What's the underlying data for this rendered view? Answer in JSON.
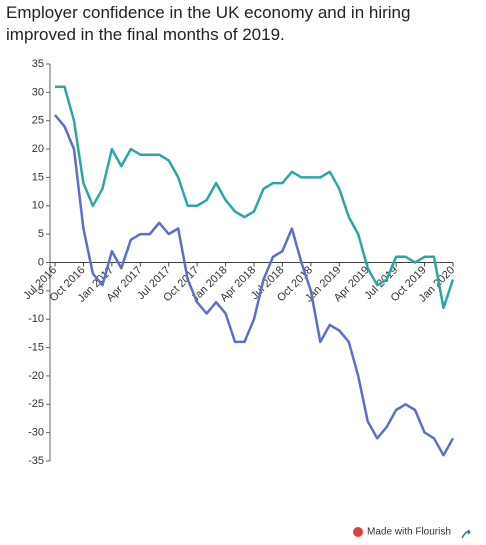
{
  "chart_data": {
    "type": "line",
    "title": "Employer confidence in the UK economy and in hiring improved in the final months of 2019.",
    "footer": "Made with Flourish",
    "categories": [
      "Jul 2016",
      null,
      null,
      "Oct 2016",
      null,
      null,
      "Jan 2017",
      null,
      null,
      "Apr 2017",
      null,
      null,
      "Jul 2017",
      null,
      null,
      "Oct 2017",
      null,
      null,
      "Jan 2018",
      null,
      null,
      "Apr 2018",
      null,
      null,
      "Jul 2018",
      null,
      null,
      "Oct 2018",
      null,
      null,
      "Jan 2019",
      null,
      null,
      "Apr 2019",
      null,
      null,
      "Jul 2019",
      null,
      null,
      "Oct 2019",
      null,
      null,
      "Jan 2020"
    ],
    "series": [
      {
        "color": "#2ca6a4",
        "values": [
          31,
          31,
          25,
          14,
          10,
          13,
          20,
          17,
          20,
          19,
          19,
          19,
          18,
          15,
          10,
          10,
          11,
          14,
          11,
          9,
          8,
          9,
          13,
          14,
          14,
          16,
          15,
          15,
          15,
          16,
          13,
          8,
          5,
          -1,
          -4,
          -3,
          1,
          1,
          0,
          1,
          1,
          -8,
          -3
        ]
      },
      {
        "color": "#5b6ecf",
        "values": [
          26,
          24,
          20,
          6,
          -2,
          -4,
          2,
          -1,
          4,
          5,
          5,
          7,
          5,
          6,
          -3,
          -7,
          -9,
          -7,
          -9,
          -14,
          -14,
          -10,
          -3,
          1,
          2,
          6,
          0,
          -5,
          -14,
          -11,
          -12,
          -14,
          -20,
          -28,
          -31,
          -29,
          -26,
          -25,
          -26,
          -30,
          -31,
          -34,
          -31
        ]
      }
    ],
    "ylim": [
      -35,
      35
    ],
    "yticks": [
      -35,
      -30,
      -25,
      -20,
      -15,
      -10,
      -5,
      0,
      5,
      10,
      15,
      20,
      25,
      30,
      35
    ]
  }
}
